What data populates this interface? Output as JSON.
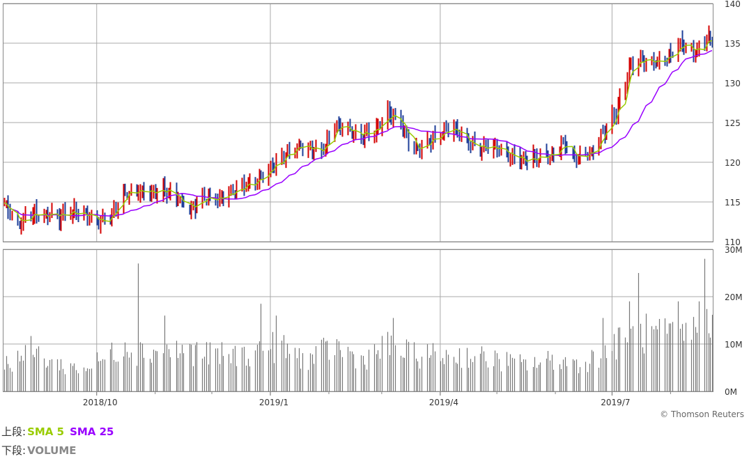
{
  "chart_data": [
    {
      "type": "candlestick",
      "y_ticks": [
        "140",
        "135",
        "130",
        "125",
        "120",
        "115",
        "110"
      ],
      "ylim": [
        110,
        140
      ],
      "x_ticks": [
        "2018/10",
        "2019/1",
        "2019/4",
        "2019/7"
      ],
      "grid": true,
      "colors": {
        "up": "#d40000",
        "down": "#1f3f99",
        "sma5": "#99cc00",
        "sma25": "#9900ff",
        "grid": "#aaaaaa"
      },
      "series": [
        {
          "name": "SMA 5",
          "color": "#99cc00"
        },
        {
          "name": "SMA 25",
          "color": "#9900ff"
        }
      ],
      "price_anchors": [
        [
          "2018-08-13",
          114.8
        ],
        [
          "2018-08-20",
          112.0
        ],
        [
          "2018-08-27",
          113.6
        ],
        [
          "2018-09-03",
          113.4
        ],
        [
          "2018-09-10",
          113.2
        ],
        [
          "2018-09-17",
          113.8
        ],
        [
          "2018-09-24",
          113.4
        ],
        [
          "2018-10-01",
          112.6
        ],
        [
          "2018-10-08",
          113.0
        ],
        [
          "2018-10-15",
          116.0
        ],
        [
          "2018-10-22",
          116.4
        ],
        [
          "2018-10-29",
          116.2
        ],
        [
          "2018-11-05",
          116.6
        ],
        [
          "2018-11-12",
          115.8
        ],
        [
          "2018-11-19",
          114.0
        ],
        [
          "2018-11-26",
          115.5
        ],
        [
          "2018-12-03",
          115.4
        ],
        [
          "2018-12-10",
          116.0
        ],
        [
          "2018-12-17",
          117.0
        ],
        [
          "2018-12-24",
          117.5
        ],
        [
          "2019-01-04",
          120.0
        ],
        [
          "2019-01-14",
          121.8
        ],
        [
          "2019-01-21",
          122.0
        ],
        [
          "2019-01-28",
          121.0
        ],
        [
          "2019-02-04",
          124.6
        ],
        [
          "2019-02-11",
          124.0
        ],
        [
          "2019-02-18",
          123.6
        ],
        [
          "2019-02-25",
          124.0
        ],
        [
          "2019-03-04",
          126.0
        ],
        [
          "2019-03-11",
          125.0
        ],
        [
          "2019-03-18",
          121.5
        ],
        [
          "2019-03-25",
          122.4
        ],
        [
          "2019-04-01",
          123.6
        ],
        [
          "2019-04-08",
          124.4
        ],
        [
          "2019-04-15",
          122.4
        ],
        [
          "2019-04-22",
          122.0
        ],
        [
          "2019-05-01",
          121.8
        ],
        [
          "2019-05-08",
          121.0
        ],
        [
          "2019-05-15",
          120.2
        ],
        [
          "2019-05-22",
          120.6
        ],
        [
          "2019-05-29",
          121.0
        ],
        [
          "2019-06-05",
          122.4
        ],
        [
          "2019-06-12",
          120.6
        ],
        [
          "2019-06-19",
          121.0
        ],
        [
          "2019-06-26",
          123.6
        ],
        [
          "2019-07-03",
          126.4
        ],
        [
          "2019-07-10",
          131.8
        ],
        [
          "2019-07-17",
          133.0
        ],
        [
          "2019-07-24",
          132.4
        ],
        [
          "2019-07-31",
          133.2
        ],
        [
          "2019-08-07",
          134.8
        ],
        [
          "2019-08-14",
          134.0
        ],
        [
          "2019-08-21",
          135.6
        ]
      ]
    },
    {
      "type": "bar",
      "y_ticks": [
        "30M",
        "20M",
        "10M",
        "0M"
      ],
      "ylim": [
        0,
        30
      ],
      "series": [
        {
          "name": "VOLUME",
          "color": "#777777"
        }
      ],
      "volume_anchors": [
        [
          "2018-08-13",
          6
        ],
        [
          "2018-08-27",
          9
        ],
        [
          "2018-09-10",
          6
        ],
        [
          "2018-09-24",
          5
        ],
        [
          "2018-10-08",
          8
        ],
        [
          "2018-10-15",
          11
        ],
        [
          "2018-10-22",
          9
        ],
        [
          "2018-11-05",
          9
        ],
        [
          "2018-11-19",
          9
        ],
        [
          "2018-12-03",
          8
        ],
        [
          "2018-12-17",
          8
        ],
        [
          "2019-01-04",
          10
        ],
        [
          "2019-01-21",
          7
        ],
        [
          "2019-02-04",
          10
        ],
        [
          "2019-02-18",
          7
        ],
        [
          "2019-03-04",
          10
        ],
        [
          "2019-03-18",
          8
        ],
        [
          "2019-04-01",
          8
        ],
        [
          "2019-04-15",
          8
        ],
        [
          "2019-05-01",
          7
        ],
        [
          "2019-05-15",
          6
        ],
        [
          "2019-06-01",
          7
        ],
        [
          "2019-06-15",
          6
        ],
        [
          "2019-07-01",
          10
        ],
        [
          "2019-07-15",
          13
        ],
        [
          "2019-08-01",
          12
        ],
        [
          "2019-08-21",
          14
        ]
      ],
      "volume_spikes": [
        [
          "2018-10-23",
          27
        ],
        [
          "2018-11-06",
          16
        ],
        [
          "2018-12-27",
          18.5
        ],
        [
          "2019-01-04",
          16
        ],
        [
          "2019-03-07",
          15.5
        ],
        [
          "2019-06-26",
          15.5
        ],
        [
          "2019-07-10",
          19
        ],
        [
          "2019-07-15",
          25
        ],
        [
          "2019-08-05",
          19
        ],
        [
          "2019-08-16",
          19
        ],
        [
          "2019-08-19",
          28
        ]
      ]
    }
  ],
  "credit": "© Thomson Reuters",
  "legend": {
    "upper_label": "上段:",
    "sma5": "SMA 5",
    "sma25": "SMA 25",
    "lower_label": "下段:",
    "volume": "VOLUME"
  }
}
